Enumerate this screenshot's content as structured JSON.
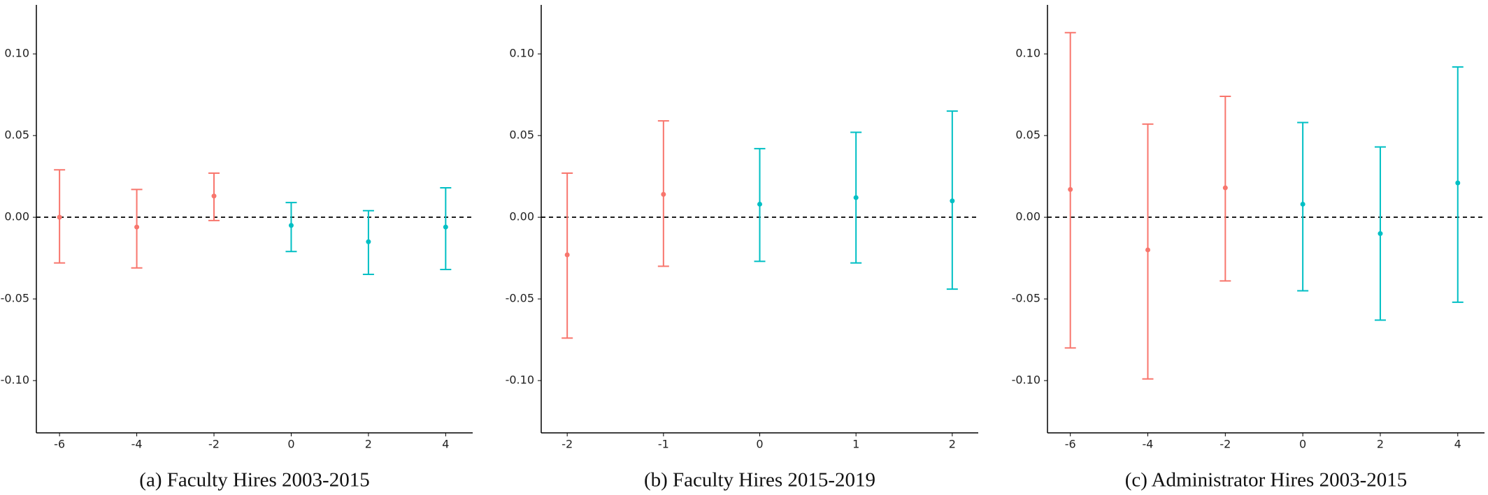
{
  "chart_data": [
    {
      "type": "errorbar",
      "title": "(a) Faculty Hires 2003-2015",
      "x": [
        -6,
        -4,
        -2,
        0,
        2,
        4
      ],
      "values": [
        0.0,
        -0.006,
        0.013,
        -0.005,
        -0.015,
        -0.006
      ],
      "lower": [
        -0.028,
        -0.031,
        -0.002,
        -0.021,
        -0.035,
        -0.032
      ],
      "upper": [
        0.029,
        0.017,
        0.027,
        0.009,
        0.004,
        0.018
      ],
      "colors": [
        "#F8766D",
        "#F8766D",
        "#F8766D",
        "#00BFC4",
        "#00BFC4",
        "#00BFC4"
      ],
      "xlim": [
        -6.6,
        4.7
      ],
      "xticks": [
        -6,
        -4,
        -2,
        0,
        2,
        4
      ],
      "ylim": [
        -0.132,
        0.13
      ],
      "yticks": [
        {
          "value": -0.1,
          "label": "-0.10"
        },
        {
          "value": -0.05,
          "label": "-0.05"
        },
        {
          "value": 0,
          "label": "0.00"
        },
        {
          "value": 0.05,
          "label": "0.05"
        },
        {
          "value": 0.1,
          "label": "0.10"
        }
      ],
      "hline": 0
    },
    {
      "type": "errorbar",
      "title": "(b) Faculty Hires 2015-2019",
      "x": [
        -2,
        -1,
        0,
        1,
        2
      ],
      "values": [
        -0.023,
        0.014,
        0.008,
        0.012,
        0.01
      ],
      "lower": [
        -0.074,
        -0.03,
        -0.027,
        -0.028,
        -0.044
      ],
      "upper": [
        0.027,
        0.059,
        0.042,
        0.052,
        0.065
      ],
      "colors": [
        "#F8766D",
        "#F8766D",
        "#00BFC4",
        "#00BFC4",
        "#00BFC4"
      ],
      "xlim": [
        -2.27,
        2.27
      ],
      "xticks": [
        -2,
        -1,
        0,
        1,
        2
      ],
      "ylim": [
        -0.132,
        0.13
      ],
      "yticks": [
        {
          "value": -0.1,
          "label": "-0.10"
        },
        {
          "value": -0.05,
          "label": "-0.05"
        },
        {
          "value": 0,
          "label": "0.00"
        },
        {
          "value": 0.05,
          "label": "0.05"
        },
        {
          "value": 0.1,
          "label": "0.10"
        }
      ],
      "hline": 0
    },
    {
      "type": "errorbar",
      "title": "(c) Administrator Hires 2003-2015",
      "x": [
        -6,
        -4,
        -2,
        0,
        2,
        4
      ],
      "values": [
        0.017,
        -0.02,
        0.018,
        0.008,
        -0.01,
        0.021
      ],
      "lower": [
        -0.08,
        -0.099,
        -0.039,
        -0.045,
        -0.063,
        -0.052
      ],
      "upper": [
        0.113,
        0.057,
        0.074,
        0.058,
        0.043,
        0.092
      ],
      "colors": [
        "#F8766D",
        "#F8766D",
        "#F8766D",
        "#00BFC4",
        "#00BFC4",
        "#00BFC4"
      ],
      "xlim": [
        -6.59,
        4.69
      ],
      "xticks": [
        -6,
        -4,
        -2,
        0,
        2,
        4
      ],
      "ylim": [
        -0.132,
        0.13
      ],
      "yticks": [
        {
          "value": -0.1,
          "label": "-0.10"
        },
        {
          "value": -0.05,
          "label": "-0.05"
        },
        {
          "value": 0,
          "label": "0.00"
        },
        {
          "value": 0.05,
          "label": "0.05"
        },
        {
          "value": 0.1,
          "label": "0.10"
        }
      ],
      "hline": 0
    }
  ]
}
